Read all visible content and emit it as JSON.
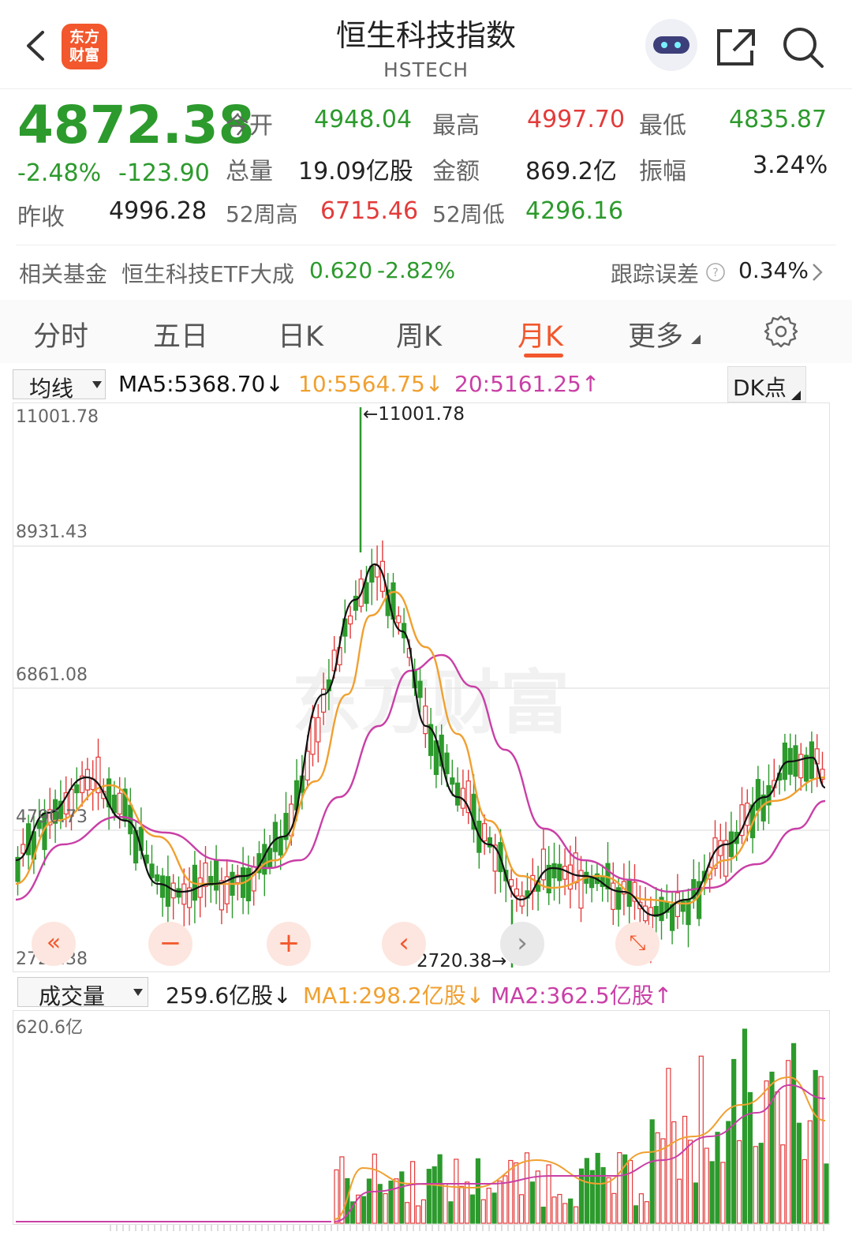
{
  "header": {
    "logo_line1": "东方",
    "logo_line2": "财富",
    "title": "恒生科技指数",
    "subtitle": "HSTECH"
  },
  "quote": {
    "price": "4872.38",
    "change_pct": "-2.48%",
    "change": "-123.90",
    "open_label": "今开",
    "open": "4948.04",
    "high_label": "最高",
    "high": "4997.70",
    "low_label": "最低",
    "low": "4835.87",
    "volume_label": "总量",
    "volume": "19.09亿股",
    "amount_label": "金额",
    "amount": "869.2亿",
    "amplitude_label": "振幅",
    "amplitude": "3.24%",
    "prev_close_label": "昨收",
    "prev_close": "4996.28",
    "week52_high_label": "52周高",
    "week52_high": "6715.46",
    "week52_low_label": "52周低",
    "week52_low": "4296.16"
  },
  "fund": {
    "label": "相关基金",
    "name": "恒生科技ETF大成",
    "price": "0.620",
    "change": "-2.82%",
    "tracking_label": "跟踪误差",
    "tracking_value": "0.34%"
  },
  "tabs": [
    "分时",
    "五日",
    "日K",
    "周K",
    "月K",
    "更多"
  ],
  "active_tab": "月K",
  "indicator": {
    "selector": "均线",
    "ma5": "MA5:5368.70↓",
    "ma10": "10:5564.75↓",
    "ma20": "20:5161.25↑",
    "dk_label": "DK点"
  },
  "price_axis": [
    "11001.78",
    "8931.43",
    "6861.08",
    "4790.73",
    "2720.38"
  ],
  "annotations": {
    "max_label": "←11001.78",
    "min_label": "2720.38→"
  },
  "volume": {
    "selector": "成交量",
    "current": "259.6亿股↓",
    "ma1": "MA1:298.2亿股↓",
    "ma2": "MA2:362.5亿股↑",
    "axis_max": "620.6亿"
  },
  "watermark": "东方财富",
  "colors": {
    "up": "#e33b3b",
    "down": "#2c9a2c",
    "accent": "#f2572d",
    "ma5": "#111111",
    "ma10": "#f0a030",
    "ma20": "#c93fa6"
  }
}
